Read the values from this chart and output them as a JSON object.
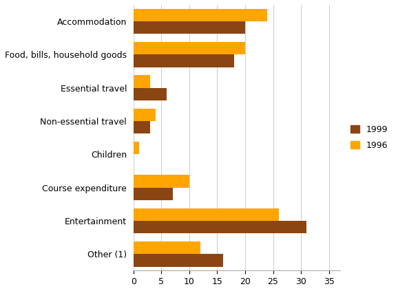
{
  "categories": [
    "Accommodation",
    "Food, bills, household goods",
    "Essential travel",
    "Non-essential travel",
    "Children",
    "Course expenditure",
    "Entertainment",
    "Other (1)"
  ],
  "values_1999": [
    20,
    18,
    6,
    3,
    0,
    7,
    31,
    16
  ],
  "values_1996": [
    24,
    20,
    3,
    4,
    1,
    10,
    26,
    12
  ],
  "color_1999": "#8B4513",
  "color_1996": "#FFA500",
  "legend_1999": "1999",
  "legend_1996": "1996",
  "xlim": [
    0,
    37
  ],
  "xticks": [
    0,
    5,
    10,
    15,
    20,
    25,
    30,
    35
  ],
  "bar_height": 0.38,
  "figsize": [
    5.78,
    4.23
  ],
  "dpi": 100,
  "background_color": "#ffffff"
}
